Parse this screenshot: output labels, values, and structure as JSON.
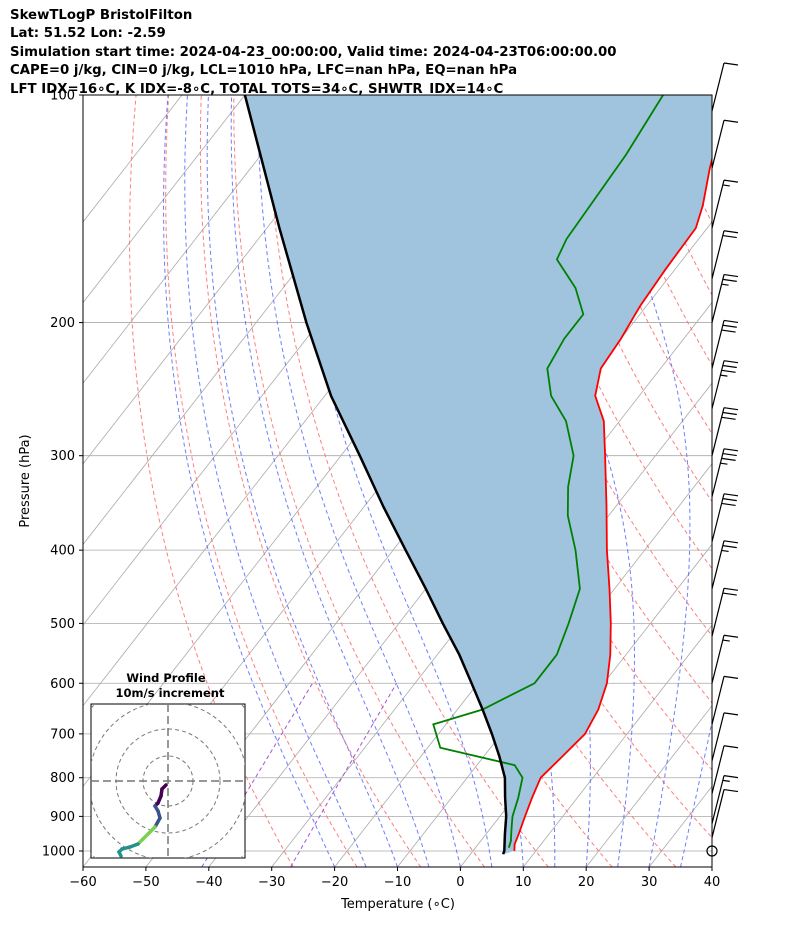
{
  "header": {
    "title": "SkewTLogP BristolFilton",
    "latlon": "Lat: 51.52   Lon: -2.59",
    "time": "Simulation start time: 2024-04-23_00:00:00, Valid time: 2024-04-23T06:00:00.00",
    "cape": "CAPE=0 j/kg, CIN=0 j/kg, LCL=1010 hPa, LFC=nan hPa, EQ=nan hPa",
    "indices": "LFT IDX=16∘C, K IDX=-8∘C, TOTAL TOTS=34∘C, SHWTR_IDX=14∘C"
  },
  "chart_data": {
    "type": "line",
    "xlabel": "Temperature (∘C)",
    "ylabel": "Pressure (hPa)",
    "xlim": [
      -60,
      40
    ],
    "ylim": [
      1050,
      100
    ],
    "y_scale": "log",
    "x_ticks": [
      -60,
      -50,
      -40,
      -30,
      -20,
      -10,
      0,
      10,
      20,
      30,
      40
    ],
    "y_ticks": [
      100,
      200,
      300,
      400,
      500,
      600,
      700,
      800,
      900,
      1000
    ],
    "grid": true,
    "colors": {
      "temperature": "#ff0000",
      "dewpoint": "#008000",
      "parcel": "#000000",
      "shading": "#a0c4de",
      "dry_adiabats": "#ff6666",
      "moist_adiabats": "#5566ff",
      "mixing_ratio": "#9944cc",
      "isotherms": "#aaaaaa"
    },
    "series": [
      {
        "key": "temperature",
        "points": [
          [
            1000,
            6.6
          ],
          [
            980,
            5.8
          ],
          [
            950,
            5.2
          ],
          [
            900,
            4.0
          ],
          [
            850,
            2.8
          ],
          [
            800,
            1.7
          ],
          [
            750,
            2.5
          ],
          [
            700,
            3.3
          ],
          [
            650,
            2.4
          ],
          [
            600,
            0.5
          ],
          [
            550,
            -2.5
          ],
          [
            500,
            -6.3
          ],
          [
            450,
            -10.8
          ],
          [
            400,
            -16.0
          ],
          [
            350,
            -21.5
          ],
          [
            300,
            -28.0
          ],
          [
            270,
            -32.5
          ],
          [
            250,
            -37.0
          ],
          [
            230,
            -39.5
          ],
          [
            210,
            -40.0
          ],
          [
            190,
            -41.0
          ],
          [
            170,
            -41.5
          ],
          [
            150,
            -41.8
          ],
          [
            140,
            -43.5
          ],
          [
            125,
            -47.0
          ],
          [
            110,
            -50.5
          ],
          [
            100,
            -53.0
          ]
        ]
      },
      {
        "key": "dewpoint",
        "points": [
          [
            990,
            5.3
          ],
          [
            970,
            4.8
          ],
          [
            950,
            4.0
          ],
          [
            920,
            2.8
          ],
          [
            900,
            2.0
          ],
          [
            850,
            0.6
          ],
          [
            800,
            -1.2
          ],
          [
            770,
            -4.0
          ],
          [
            730,
            -18.0
          ],
          [
            680,
            -22.0
          ],
          [
            650,
            -16.0
          ],
          [
            600,
            -11.0
          ],
          [
            550,
            -11.0
          ],
          [
            500,
            -13.0
          ],
          [
            450,
            -15.5
          ],
          [
            400,
            -21.0
          ],
          [
            360,
            -26.5
          ],
          [
            330,
            -30.0
          ],
          [
            300,
            -33.0
          ],
          [
            270,
            -38.5
          ],
          [
            250,
            -44.0
          ],
          [
            230,
            -48.0
          ],
          [
            210,
            -49.0
          ],
          [
            195,
            -49.0
          ],
          [
            180,
            -53.5
          ],
          [
            165,
            -60.0
          ],
          [
            155,
            -61.0
          ],
          [
            120,
            -62.0
          ],
          [
            100,
            -63.5
          ]
        ]
      },
      {
        "key": "parcel",
        "points": [
          [
            1010,
            5.2
          ],
          [
            1000,
            5.0
          ],
          [
            950,
            3.0
          ],
          [
            900,
            1.0
          ],
          [
            850,
            -1.5
          ],
          [
            800,
            -4.0
          ],
          [
            750,
            -7.5
          ],
          [
            700,
            -11.5
          ],
          [
            650,
            -16.0
          ],
          [
            600,
            -21.0
          ],
          [
            550,
            -26.5
          ],
          [
            500,
            -33.0
          ],
          [
            450,
            -40.0
          ],
          [
            400,
            -48.0
          ],
          [
            350,
            -57.0
          ],
          [
            300,
            -67.0
          ],
          [
            250,
            -79.0
          ],
          [
            200,
            -92.0
          ],
          [
            150,
            -108.0
          ],
          [
            100,
            -130.0
          ]
        ]
      }
    ],
    "wind_barbs": [
      {
        "p": 105,
        "speed": 10
      },
      {
        "p": 125,
        "speed": 10
      },
      {
        "p": 150,
        "speed": 15
      },
      {
        "p": 175,
        "speed": 20
      },
      {
        "p": 200,
        "speed": 25
      },
      {
        "p": 230,
        "speed": 30
      },
      {
        "p": 260,
        "speed": 35
      },
      {
        "p": 300,
        "speed": 30
      },
      {
        "p": 340,
        "speed": 35
      },
      {
        "p": 390,
        "speed": 30
      },
      {
        "p": 450,
        "speed": 25
      },
      {
        "p": 520,
        "speed": 20
      },
      {
        "p": 600,
        "speed": 15
      },
      {
        "p": 680,
        "speed": 10
      },
      {
        "p": 760,
        "speed": 10
      },
      {
        "p": 840,
        "speed": 10
      },
      {
        "p": 920,
        "speed": 15
      },
      {
        "p": 960,
        "speed": 10
      },
      {
        "p": 1000,
        "speed": 0
      }
    ],
    "hodograph": {
      "title": "Wind Profile",
      "subtitle": "10m/s increment"
    }
  }
}
